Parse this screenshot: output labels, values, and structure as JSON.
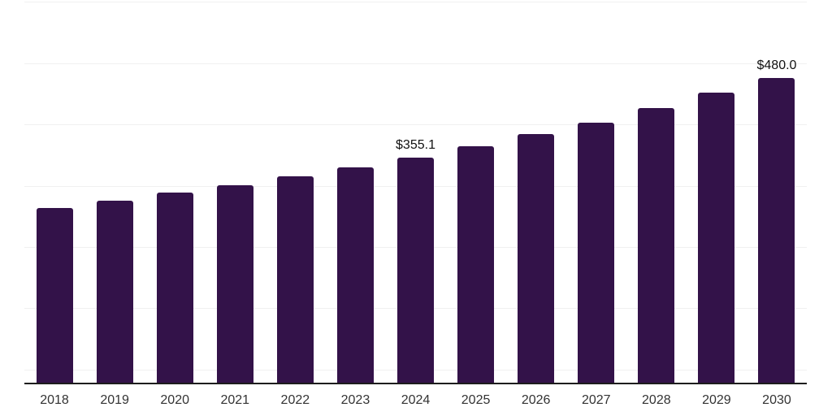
{
  "chart_data": {
    "type": "bar",
    "title": "",
    "xlabel": "",
    "ylabel": "",
    "categories": [
      "2018",
      "2019",
      "2020",
      "2021",
      "2022",
      "2023",
      "2024",
      "2025",
      "2026",
      "2027",
      "2028",
      "2029",
      "2030"
    ],
    "values": [
      276.0,
      287.4,
      299.4,
      311.3,
      324.7,
      338.9,
      355.1,
      372.4,
      391.2,
      410.1,
      432.4,
      456.1,
      480.0
    ],
    "data_labels": [
      null,
      null,
      null,
      null,
      null,
      null,
      "$355.1",
      null,
      null,
      null,
      null,
      null,
      "$480.0"
    ],
    "ylim": [
      0,
      600
    ],
    "grid": "horizontal",
    "gridline_count": 7,
    "legend": "none",
    "bar_color": "#331249",
    "axis_color": "#1d1d1d",
    "grid_color": "#f0f0f0",
    "tick_label_color": "#333333",
    "data_label_color": "#111111"
  }
}
